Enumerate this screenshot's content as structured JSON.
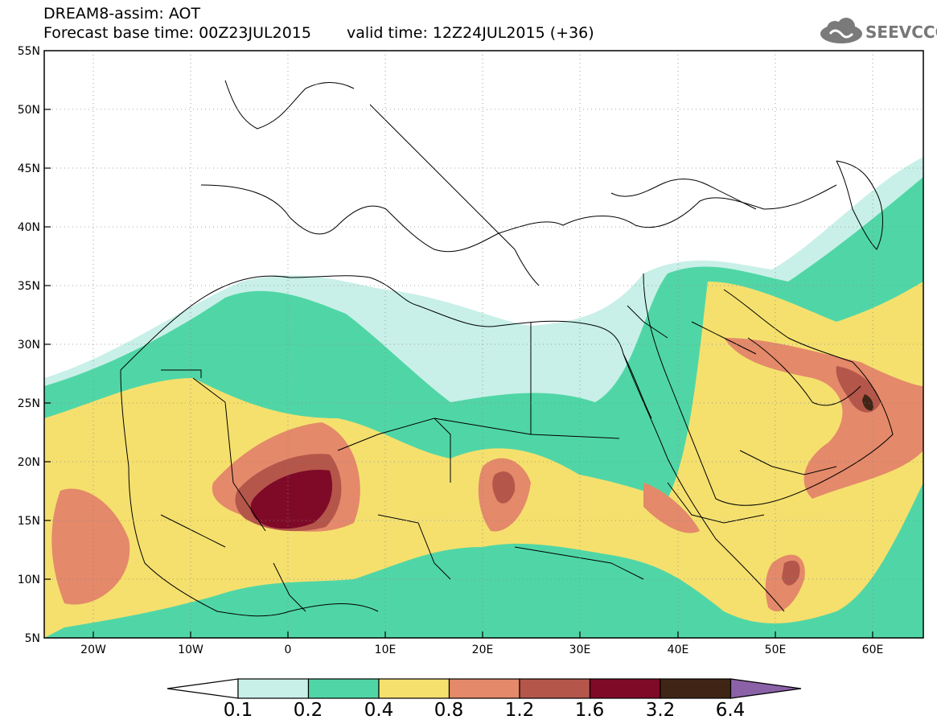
{
  "header": {
    "model_title": "DREAM8-assim: AOT",
    "base_time": "Forecast base time: 00Z23JUL2015",
    "valid_time": "valid time: 12Z24JUL2015 (+36)"
  },
  "logo": {
    "text": "SEEVCCC",
    "icon": "cloud-logo-icon"
  },
  "map": {
    "lon_range": [
      -25,
      65
    ],
    "lat_range": [
      5,
      55
    ],
    "lat_labels": [
      "55N",
      "50N",
      "45N",
      "40N",
      "35N",
      "30N",
      "25N",
      "20N",
      "15N",
      "10N",
      "5N"
    ],
    "lon_labels": [
      "20W",
      "10W",
      "0",
      "10E",
      "20E",
      "30E",
      "40E",
      "50E",
      "60E"
    ]
  },
  "colorbar": {
    "labels": [
      "0.1",
      "0.2",
      "0.4",
      "0.8",
      "1.2",
      "1.6",
      "3.2",
      "6.4"
    ],
    "colors": {
      "under": "#ffffff",
      "c1": "#c8f0e8",
      "c2": "#50d6a6",
      "c3": "#f5e06e",
      "c4": "#e4896a",
      "c5": "#b4564a",
      "c6": "#7f0a28",
      "c7": "#402516",
      "over": "#8b62a8"
    }
  }
}
